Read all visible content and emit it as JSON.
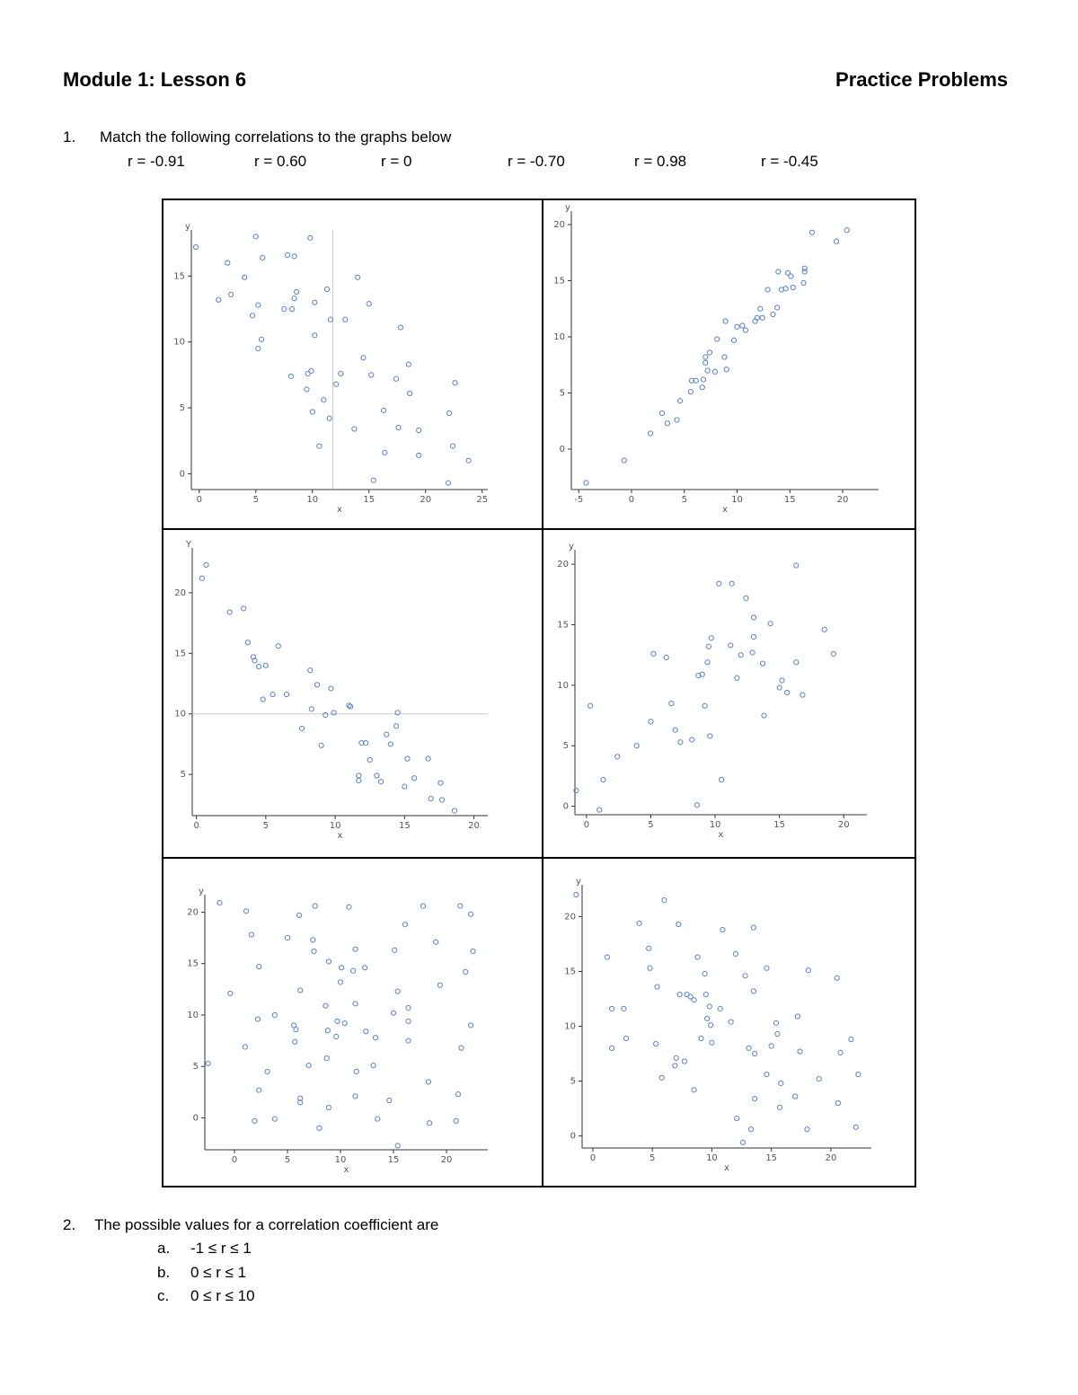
{
  "header": {
    "left": "Module 1: Lesson 6",
    "right": "Practice Problems"
  },
  "questions": [
    {
      "number": "1.",
      "text": "Match the following correlations to the graphs below",
      "options": [
        "r = -0.91",
        "r = 0.60",
        "r = 0",
        "r = -0.70",
        "r = 0.98",
        "r = -0.45"
      ]
    },
    {
      "number": "2.",
      "text": "The possible values for a correlation coefficient are",
      "choices": [
        {
          "letter": "a.",
          "text": "-1 ≤ r ≤ 1"
        },
        {
          "letter": "b.",
          "text": "0 ≤ r ≤ 1"
        },
        {
          "letter": "c.",
          "text": "0 ≤ r ≤ 10"
        }
      ]
    }
  ],
  "chart_data": [
    {
      "type": "scatter",
      "x_label": "x",
      "y_label": "y",
      "color": "#5b82c8",
      "xlim": [
        -0.7,
        25.5
      ],
      "ylim": [
        -1.2,
        18.5
      ],
      "xticks": [
        0,
        5,
        10,
        15,
        20,
        25
      ],
      "yticks": [
        0,
        5,
        10,
        15
      ],
      "vline": 11.8,
      "x": [
        -0.3,
        1.7,
        2.5,
        2.8,
        4.0,
        5.0,
        5.6,
        4.7,
        5.2,
        5.5,
        5.2,
        7.8,
        8.4,
        8.6,
        8.4,
        7.5,
        8.2,
        9.8,
        10.2,
        11.3,
        10.2,
        11.6,
        12.9,
        14.0,
        15.0,
        8.1,
        9.6,
        9.9,
        9.5,
        10.0,
        10.6,
        11.0,
        11.5,
        12.1,
        12.5,
        14.5,
        15.2,
        13.7,
        15.4,
        16.3,
        16.4,
        17.8,
        17.4,
        17.6,
        18.5,
        18.6,
        19.4,
        19.4,
        22.1,
        22.6,
        22.4,
        22.0,
        23.8
      ],
      "values": [
        17.2,
        13.2,
        16.0,
        13.6,
        14.9,
        18.0,
        16.4,
        12.0,
        12.8,
        10.2,
        9.5,
        16.6,
        16.5,
        13.8,
        13.3,
        12.5,
        12.5,
        17.9,
        13.0,
        14.0,
        10.5,
        11.7,
        11.7,
        14.9,
        12.9,
        7.4,
        7.6,
        7.8,
        6.4,
        4.7,
        2.1,
        5.6,
        4.2,
        6.8,
        7.6,
        8.8,
        7.5,
        3.4,
        -0.5,
        4.8,
        1.6,
        11.1,
        7.2,
        3.5,
        8.3,
        6.1,
        3.3,
        1.4,
        4.6,
        6.9,
        2.1,
        -0.7,
        1.0
      ]
    },
    {
      "type": "scatter",
      "x_label": "x",
      "y_label": "y",
      "color": "#5b82c8",
      "xlim": [
        -5.7,
        23.4
      ],
      "ylim": [
        -3.6,
        21.2
      ],
      "xticks": [
        -5,
        0,
        5,
        10,
        15,
        20
      ],
      "yticks": [
        0,
        5,
        10,
        15,
        20
      ],
      "x": [
        -4.3,
        -0.7,
        1.8,
        2.9,
        3.4,
        4.3,
        4.6,
        5.6,
        5.7,
        6.1,
        6.7,
        6.8,
        7.0,
        7.2,
        7.0,
        7.4,
        7.9,
        8.1,
        8.8,
        9.0,
        8.9,
        9.7,
        10.0,
        10.5,
        10.8,
        11.7,
        11.9,
        12.2,
        12.4,
        12.9,
        13.4,
        13.8,
        13.9,
        14.2,
        14.6,
        14.8,
        15.1,
        15.3,
        16.3,
        16.4,
        16.4,
        17.1,
        19.4,
        20.4
      ],
      "values": [
        -3.0,
        -1.0,
        1.4,
        3.2,
        2.3,
        2.6,
        4.3,
        5.1,
        6.1,
        6.1,
        5.5,
        6.2,
        7.7,
        7.0,
        8.2,
        8.6,
        6.9,
        9.8,
        8.2,
        7.1,
        11.4,
        9.7,
        10.9,
        11.0,
        10.6,
        11.4,
        11.7,
        12.5,
        11.7,
        14.2,
        12.0,
        12.6,
        15.8,
        14.2,
        14.3,
        15.7,
        15.4,
        14.4,
        14.8,
        16.1,
        15.8,
        19.3,
        18.5,
        19.5
      ]
    },
    {
      "type": "scatter",
      "x_label": "x",
      "y_label": "Y",
      "color": "#5b82c8",
      "xlim": [
        -0.3,
        21
      ],
      "ylim": [
        1.6,
        23.7
      ],
      "xticks": [
        0,
        5,
        10,
        15,
        20
      ],
      "yticks": [
        5,
        10,
        15,
        20
      ],
      "hline": 10,
      "x": [
        0.4,
        0.7,
        2.4,
        3.4,
        3.7,
        4.1,
        4.2,
        4.5,
        5.0,
        5.9,
        4.8,
        5.5,
        6.5,
        8.2,
        8.7,
        9.7,
        8.3,
        9.3,
        9.9,
        11.0,
        11.1,
        7.6,
        9.0,
        11.9,
        12.2,
        11.7,
        11.7,
        12.5,
        13.0,
        13.3,
        13.7,
        14.0,
        14.4,
        14.5,
        15.0,
        15.2,
        15.7,
        16.7,
        16.9,
        17.6,
        17.7,
        18.6
      ],
      "values": [
        21.2,
        22.3,
        18.4,
        18.7,
        15.9,
        14.7,
        14.4,
        13.9,
        14.0,
        15.6,
        11.2,
        11.6,
        11.6,
        13.6,
        12.4,
        12.1,
        10.4,
        9.9,
        10.1,
        10.7,
        10.6,
        8.8,
        7.4,
        7.6,
        7.6,
        4.9,
        4.5,
        6.2,
        4.9,
        4.4,
        8.3,
        7.5,
        9.0,
        10.1,
        4.0,
        6.3,
        4.7,
        6.3,
        3.0,
        4.3,
        2.9,
        2.0
      ]
    },
    {
      "type": "scatter",
      "x_label": "x",
      "y_label": "y",
      "color": "#5b82c8",
      "xlim": [
        -0.9,
        21.8
      ],
      "ylim": [
        -0.7,
        21.2
      ],
      "xticks": [
        0,
        5,
        10,
        15,
        20
      ],
      "yticks": [
        0,
        5,
        10,
        15,
        20
      ],
      "x": [
        -0.8,
        0.3,
        1.0,
        1.3,
        2.4,
        3.9,
        5.0,
        5.2,
        6.2,
        6.6,
        6.9,
        7.3,
        8.2,
        8.6,
        8.7,
        9.0,
        9.2,
        9.4,
        9.5,
        9.7,
        9.6,
        10.3,
        10.5,
        11.2,
        11.3,
        11.7,
        12.0,
        12.4,
        12.9,
        13.0,
        13.0,
        13.7,
        13.8,
        14.3,
        15.0,
        15.2,
        15.6,
        16.3,
        16.3,
        16.8,
        18.5,
        19.2
      ],
      "values": [
        1.3,
        8.3,
        -0.3,
        2.2,
        4.1,
        5.0,
        7.0,
        12.6,
        12.3,
        8.5,
        6.3,
        5.3,
        5.5,
        0.1,
        10.8,
        10.9,
        8.3,
        11.9,
        13.2,
        13.9,
        5.8,
        18.4,
        2.2,
        13.3,
        18.4,
        10.6,
        12.5,
        17.2,
        12.7,
        15.6,
        14.0,
        11.8,
        7.5,
        15.1,
        9.8,
        10.4,
        9.4,
        19.9,
        11.9,
        9.2,
        14.6,
        12.6
      ]
    },
    {
      "type": "scatter",
      "x_label": "x",
      "y_label": "y",
      "color": "#5b82c8",
      "xlim": [
        -2.8,
        23.9
      ],
      "ylim": [
        -3.1,
        21.7
      ],
      "xticks": [
        0,
        5,
        10,
        15,
        20
      ],
      "yticks": [
        0,
        5,
        10,
        15,
        20
      ],
      "x": [
        -2.5,
        -1.4,
        -0.4,
        1.0,
        1.1,
        1.6,
        1.9,
        2.2,
        2.3,
        2.3,
        3.1,
        3.8,
        3.8,
        5.0,
        5.6,
        5.8,
        5.7,
        6.1,
        6.2,
        6.2,
        6.2,
        7.0,
        7.4,
        7.5,
        7.6,
        8.0,
        8.7,
        8.6,
        8.9,
        8.9,
        8.8,
        9.7,
        9.6,
        10.0,
        10.1,
        10.4,
        10.8,
        11.4,
        11.2,
        11.4,
        11.4,
        11.5,
        12.3,
        12.4,
        13.1,
        13.3,
        13.5,
        14.6,
        15.0,
        15.1,
        15.4,
        15.4,
        16.1,
        16.4,
        16.4,
        16.4,
        17.8,
        18.3,
        18.4,
        19.0,
        19.4,
        20.9,
        21.1,
        21.3,
        21.4,
        21.8,
        22.3,
        22.3,
        22.5
      ],
      "values": [
        5.3,
        20.9,
        12.1,
        6.9,
        20.1,
        17.8,
        -0.3,
        9.6,
        14.7,
        2.7,
        4.5,
        10.0,
        -0.1,
        17.5,
        9.0,
        8.6,
        7.4,
        19.7,
        12.4,
        1.9,
        1.5,
        5.1,
        17.3,
        16.2,
        20.6,
        -1.0,
        5.8,
        10.9,
        15.2,
        1.0,
        8.5,
        9.4,
        7.9,
        13.2,
        14.6,
        9.2,
        20.5,
        2.1,
        14.3,
        16.4,
        11.1,
        4.5,
        14.6,
        8.4,
        5.1,
        7.8,
        -0.1,
        1.7,
        10.2,
        16.3,
        12.3,
        -2.7,
        18.8,
        10.7,
        9.4,
        7.5,
        20.6,
        3.5,
        -0.5,
        17.1,
        12.9,
        -0.3,
        2.3,
        20.6,
        6.8,
        14.2,
        19.8,
        9.0,
        16.2
      ]
    },
    {
      "type": "scatter",
      "x_label": "x",
      "y_label": "y",
      "color": "#5b82c8",
      "xlim": [
        -0.9,
        23.4
      ],
      "ylim": [
        -1.1,
        22.9
      ],
      "xticks": [
        0,
        5,
        10,
        15,
        20
      ],
      "yticks": [
        0,
        5,
        10,
        15,
        20
      ],
      "x": [
        -1.4,
        1.2,
        1.6,
        1.6,
        2.6,
        2.8,
        3.9,
        4.7,
        4.8,
        5.3,
        5.4,
        5.8,
        6.0,
        7.0,
        6.9,
        7.2,
        7.3,
        7.7,
        7.9,
        8.2,
        8.5,
        8.5,
        8.8,
        9.1,
        9.4,
        9.5,
        9.6,
        9.8,
        9.9,
        10.0,
        10.7,
        10.9,
        11.6,
        12.0,
        12.1,
        12.6,
        12.8,
        13.1,
        13.3,
        13.5,
        13.5,
        13.6,
        13.6,
        14.6,
        14.6,
        15.0,
        15.4,
        15.5,
        15.7,
        15.8,
        17.0,
        17.2,
        17.4,
        18.0,
        18.1,
        19.0,
        20.5,
        20.6,
        20.8,
        21.7,
        22.3,
        22.1
      ],
      "values": [
        22.0,
        16.3,
        11.6,
        8.0,
        11.6,
        8.9,
        19.4,
        17.1,
        15.3,
        8.4,
        13.6,
        5.3,
        21.5,
        7.1,
        6.4,
        19.3,
        12.9,
        6.8,
        12.9,
        12.7,
        12.4,
        4.2,
        16.3,
        8.9,
        14.8,
        12.9,
        10.7,
        11.8,
        10.1,
        8.5,
        11.6,
        18.8,
        10.4,
        16.6,
        1.6,
        -0.6,
        14.6,
        8.0,
        0.6,
        13.2,
        19.0,
        7.5,
        3.4,
        15.3,
        5.6,
        8.2,
        10.3,
        9.3,
        2.6,
        4.8,
        3.6,
        10.9,
        7.7,
        0.6,
        15.1,
        5.2,
        14.4,
        3.0,
        7.6,
        8.8,
        5.6,
        0.8
      ]
    }
  ]
}
